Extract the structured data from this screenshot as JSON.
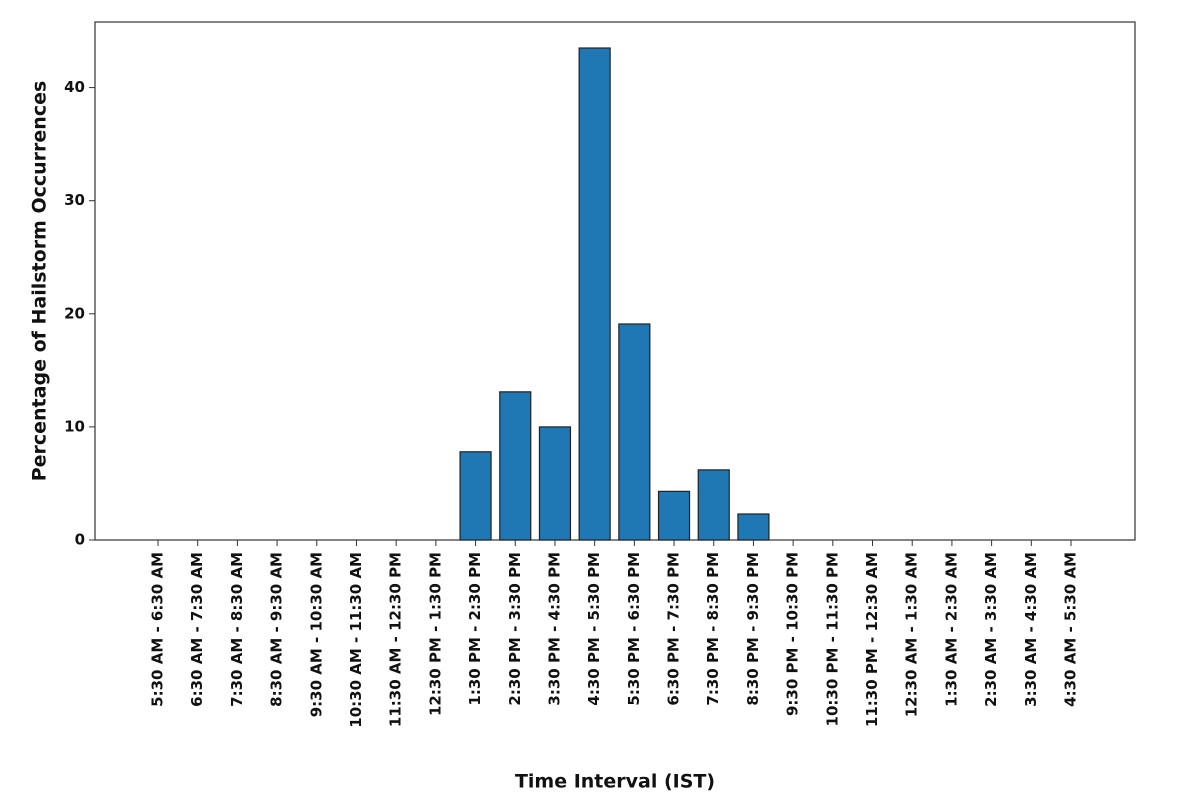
{
  "chart_data": {
    "type": "bar",
    "x_label": "Time Interval (IST)",
    "y_label": "Percentage of Hailstorm Occurrences",
    "categories": [
      "5:30 AM - 6:30 AM",
      "6:30 AM - 7:30 AM",
      "7:30 AM - 8:30 AM",
      "8:30 AM - 9:30 AM",
      "9:30 AM - 10:30 AM",
      "10:30 AM - 11:30 AM",
      "11:30 AM - 12:30 PM",
      "12:30 PM - 1:30 PM",
      "1:30 PM - 2:30 PM",
      "2:30 PM - 3:30 PM",
      "3:30 PM - 4:30 PM",
      "4:30 PM - 5:30 PM",
      "5:30 PM - 6:30 PM",
      "6:30 PM - 7:30 PM",
      "7:30 PM - 8:30 PM",
      "8:30 PM - 9:30 PM",
      "9:30 PM - 10:30 PM",
      "10:30 PM - 11:30 PM",
      "11:30 PM - 12:30 AM",
      "12:30 AM - 1:30 AM",
      "1:30 AM - 2:30 AM",
      "2:30 AM - 3:30 AM",
      "3:30 AM - 4:30 AM",
      "4:30 AM - 5:30 AM"
    ],
    "values": [
      0,
      0,
      0,
      0,
      0,
      0,
      0,
      0,
      7.8,
      13.1,
      10.0,
      43.5,
      19.1,
      4.3,
      6.2,
      2.3,
      0,
      0,
      0,
      0,
      0,
      0,
      0,
      0
    ],
    "color": "#1f77b4",
    "ylim": [
      0,
      45.8
    ],
    "yticks": [
      0,
      10,
      20,
      30,
      40
    ],
    "grid": false
  }
}
